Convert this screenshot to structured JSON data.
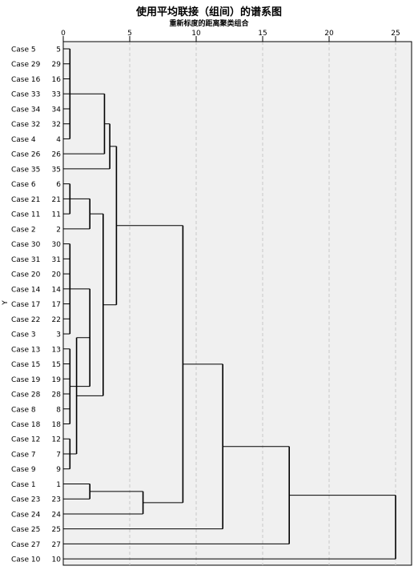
{
  "chart_data": {
    "type": "dendrogram",
    "title": "使用平均联接（组间）的谱系图",
    "subtitle": "重新标度的距离聚类组合",
    "ylabel": "Y",
    "xlim": [
      0,
      25
    ],
    "xticks": [
      0,
      5,
      10,
      15,
      20,
      25
    ],
    "grid": "vertical-dashed",
    "leaves": [
      {
        "label": "Case 5",
        "num": "5"
      },
      {
        "label": "Case 29",
        "num": "29"
      },
      {
        "label": "Case 16",
        "num": "16"
      },
      {
        "label": "Case 33",
        "num": "33"
      },
      {
        "label": "Case 34",
        "num": "34"
      },
      {
        "label": "Case 32",
        "num": "32"
      },
      {
        "label": "Case 4",
        "num": "4"
      },
      {
        "label": "Case 26",
        "num": "26"
      },
      {
        "label": "Case 35",
        "num": "35"
      },
      {
        "label": "Case 6",
        "num": "6"
      },
      {
        "label": "Case 21",
        "num": "21"
      },
      {
        "label": "Case 11",
        "num": "11"
      },
      {
        "label": "Case 2",
        "num": "2"
      },
      {
        "label": "Case 30",
        "num": "30"
      },
      {
        "label": "Case 31",
        "num": "31"
      },
      {
        "label": "Case 20",
        "num": "20"
      },
      {
        "label": "Case 14",
        "num": "14"
      },
      {
        "label": "Case 17",
        "num": "17"
      },
      {
        "label": "Case 22",
        "num": "22"
      },
      {
        "label": "Case 3",
        "num": "3"
      },
      {
        "label": "Case 13",
        "num": "13"
      },
      {
        "label": "Case 15",
        "num": "15"
      },
      {
        "label": "Case 19",
        "num": "19"
      },
      {
        "label": "Case 28",
        "num": "28"
      },
      {
        "label": "Case 8",
        "num": "8"
      },
      {
        "label": "Case 18",
        "num": "18"
      },
      {
        "label": "Case 12",
        "num": "12"
      },
      {
        "label": "Case 7",
        "num": "7"
      },
      {
        "label": "Case 9",
        "num": "9"
      },
      {
        "label": "Case 1",
        "num": "1"
      },
      {
        "label": "Case 23",
        "num": "23"
      },
      {
        "label": "Case 24",
        "num": "24"
      },
      {
        "label": "Case 25",
        "num": "25"
      },
      {
        "label": "Case 27",
        "num": "27"
      },
      {
        "label": "Case 10",
        "num": "10"
      }
    ],
    "merges": [
      {
        "members": [
          0,
          1,
          2,
          3,
          4,
          5,
          6
        ],
        "distance": 0.5
      },
      {
        "members": [
          "m0",
          7
        ],
        "distance": 3.1
      },
      {
        "members": [
          8,
          "m1"
        ],
        "distance": 3.5
      },
      {
        "members": [
          9,
          10,
          11
        ],
        "distance": 0.5
      },
      {
        "members": [
          "m3",
          12
        ],
        "distance": 2.0
      },
      {
        "members": [
          13,
          14,
          15,
          16,
          17,
          18,
          19
        ],
        "distance": 0.5
      },
      {
        "members": [
          20,
          21,
          22,
          23,
          24,
          25
        ],
        "distance": 0.5
      },
      {
        "members": [
          "m5",
          "m6"
        ],
        "distance": 2.0
      },
      {
        "members": [
          26,
          27,
          28
        ],
        "distance": 0.5
      },
      {
        "members": [
          "m7",
          "m8"
        ],
        "distance": 1.0
      },
      {
        "members": [
          "m4",
          "m9"
        ],
        "distance": 3.0
      },
      {
        "members": [
          "m2",
          "m10"
        ],
        "distance": 4.0
      },
      {
        "members": [
          29,
          30
        ],
        "distance": 2.0
      },
      {
        "members": [
          "m12",
          31
        ],
        "distance": 6.0
      },
      {
        "members": [
          "m11",
          "m13"
        ],
        "distance": 9.0
      },
      {
        "members": [
          "m14",
          32
        ],
        "distance": 12.0
      },
      {
        "members": [
          "m15",
          33
        ],
        "distance": 17.0
      },
      {
        "members": [
          "m16",
          34
        ],
        "distance": 25.0
      }
    ]
  }
}
